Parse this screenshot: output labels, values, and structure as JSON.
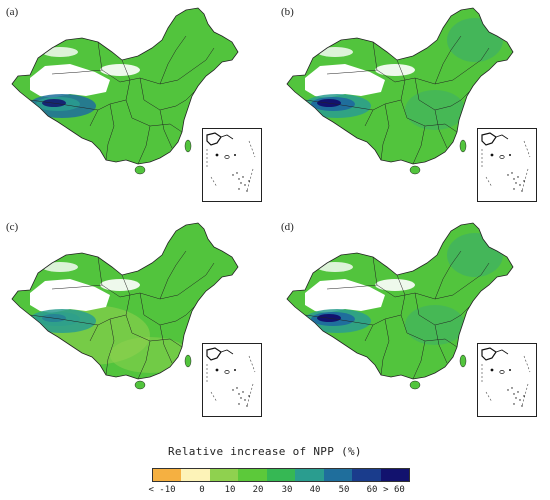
{
  "panels": [
    {
      "id": "a",
      "label": "(a)"
    },
    {
      "id": "b",
      "label": "(b)"
    },
    {
      "id": "c",
      "label": "(c)"
    },
    {
      "id": "d",
      "label": "(d)"
    }
  ],
  "legend": {
    "title": "Relative increase of NPP (%)",
    "tick_labels": [
      "< -10",
      "0",
      "10",
      "20",
      "30",
      "40",
      "50",
      "60",
      "> 60"
    ],
    "colors": [
      "#f5b041",
      "#fdf3b8",
      "#8fd14f",
      "#5cc93a",
      "#36b854",
      "#2a9d8f",
      "#1f6e9c",
      "#1a3c8c",
      "#12126e"
    ]
  },
  "map_colors": {
    "base_green": "#52c43d",
    "light_green": "#8fd14f",
    "teal": "#2a9d8f",
    "blue": "#1f6e9c",
    "navy": "#12126e",
    "white": "#ffffff",
    "boundary": "#222222"
  }
}
